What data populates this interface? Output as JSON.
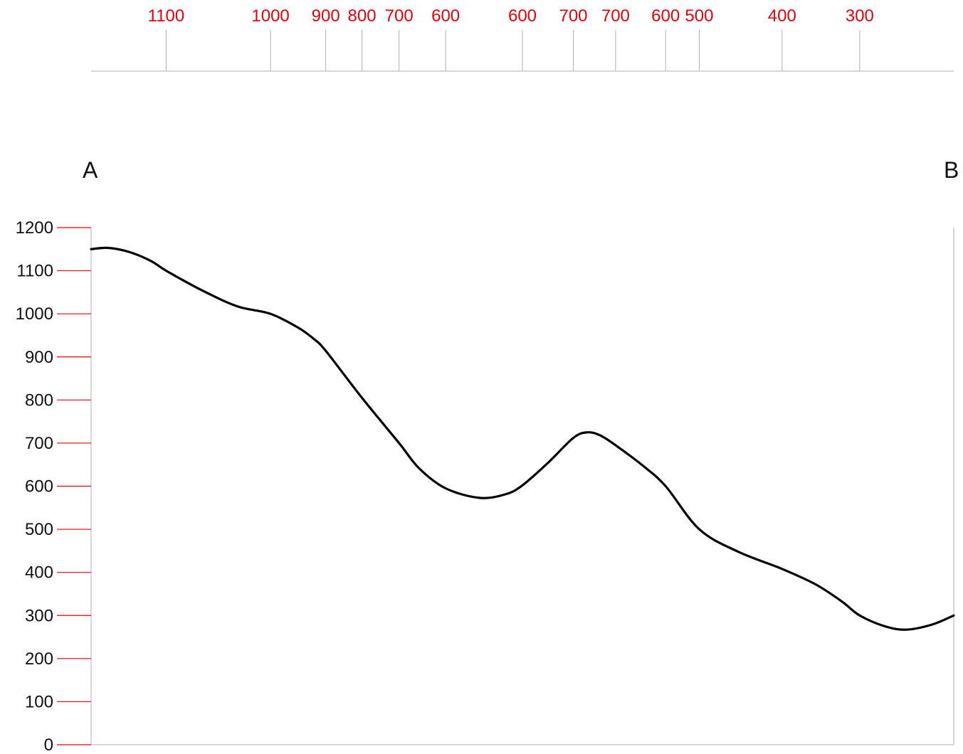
{
  "chart_data": {
    "type": "line",
    "endpoint_labels": {
      "start": "A",
      "end": "B"
    },
    "y_axis": {
      "ylim": [
        0,
        1200
      ],
      "ticks": [
        0,
        100,
        200,
        300,
        400,
        500,
        600,
        700,
        800,
        900,
        1000,
        1100,
        1200
      ],
      "tick_color": "#e8000b"
    },
    "x_range": [
      0,
      1
    ],
    "contour_crossings": [
      {
        "position": 0.087,
        "label": "1100"
      },
      {
        "position": 0.208,
        "label": "1000"
      },
      {
        "position": 0.272,
        "label": "900"
      },
      {
        "position": 0.314,
        "label": "800"
      },
      {
        "position": 0.357,
        "label": "700"
      },
      {
        "position": 0.411,
        "label": "600"
      },
      {
        "position": 0.5,
        "label": "600"
      },
      {
        "position": 0.559,
        "label": "700"
      },
      {
        "position": 0.608,
        "label": "700"
      },
      {
        "position": 0.666,
        "label": "600"
      },
      {
        "position": 0.705,
        "label": "500"
      },
      {
        "position": 0.801,
        "label": "400"
      },
      {
        "position": 0.891,
        "label": "300"
      }
    ],
    "series": [
      {
        "x": [
          0,
          0.02,
          0.045,
          0.07,
          0.087,
          0.13,
          0.17,
          0.208,
          0.24,
          0.258,
          0.272,
          0.314,
          0.357,
          0.38,
          0.411,
          0.45,
          0.48,
          0.5,
          0.53,
          0.559,
          0.575,
          0.59,
          0.608,
          0.64,
          0.666,
          0.705,
          0.75,
          0.801,
          0.84,
          0.87,
          0.891,
          0.92,
          0.945,
          0.975,
          1.0
        ],
        "values": [
          1150,
          1153,
          1143,
          1122,
          1100,
          1053,
          1017,
          1000,
          968,
          942,
          914,
          805,
          700,
          642,
          595,
          573,
          581,
          602,
          655,
          712,
          725,
          718,
          695,
          647,
          600,
          500,
          448,
          408,
          372,
          333,
          300,
          275,
          267,
          279,
          300
        ]
      }
    ],
    "colors": {
      "profile_line": "#000000",
      "contour_label": "#e8000b",
      "axis": "#b0b0b0"
    }
  }
}
